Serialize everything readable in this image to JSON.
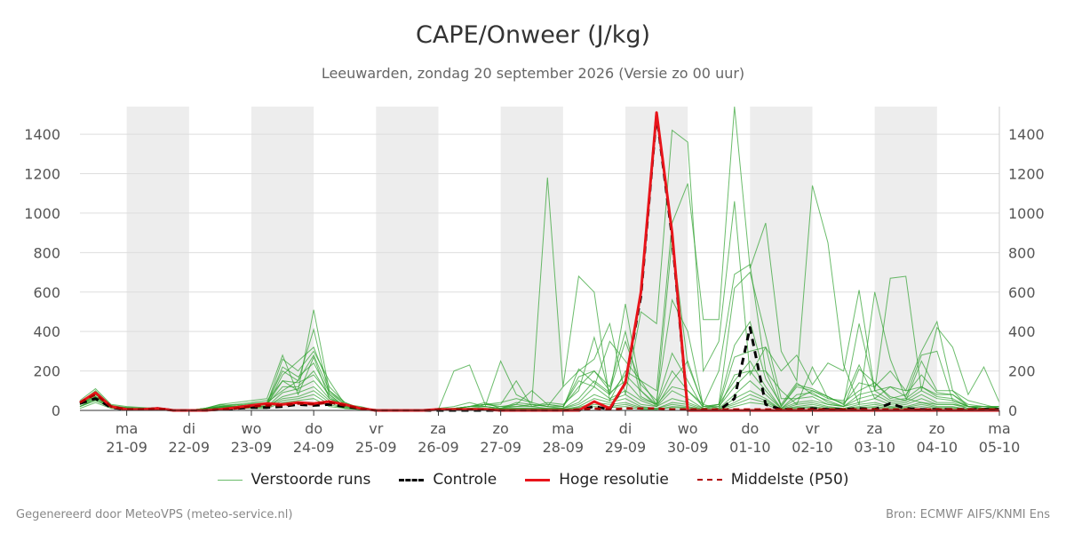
{
  "title": "CAPE/Onweer (J/kg)",
  "subtitle": "Leeuwarden, zondag 20 september 2026 (Versie zo 00 uur)",
  "footer_left": "Gegenereerd door MeteoVPS (meteo-service.nl)",
  "footer_right": "Bron: ECMWF AIFS/KNMI Ens",
  "legend": {
    "perturbed": "Verstoorde runs",
    "control": "Controle",
    "hres": "Hoge resolutie",
    "p50": "Middelste (P50)"
  },
  "colors": {
    "perturbed": "#2ca02c",
    "control": "#000000",
    "hres": "#e8141a",
    "p50": "#b00000",
    "band": "#ededed",
    "grid": "#dddddd"
  },
  "chart_data": {
    "type": "line",
    "ylim": [
      0,
      1540
    ],
    "yticks": [
      0,
      200,
      400,
      600,
      800,
      1000,
      1200,
      1400
    ],
    "xlim": [
      -0.75,
      14
    ],
    "xticks": [
      {
        "x": 0,
        "day": "ma",
        "date": "21-09"
      },
      {
        "x": 1,
        "day": "di",
        "date": "22-09"
      },
      {
        "x": 2,
        "day": "wo",
        "date": "23-09"
      },
      {
        "x": 3,
        "day": "do",
        "date": "24-09"
      },
      {
        "x": 4,
        "day": "vr",
        "date": "25-09"
      },
      {
        "x": 5,
        "day": "za",
        "date": "26-09"
      },
      {
        "x": 6,
        "day": "zo",
        "date": "27-09"
      },
      {
        "x": 7,
        "day": "ma",
        "date": "28-09"
      },
      {
        "x": 8,
        "day": "di",
        "date": "29-09"
      },
      {
        "x": 9,
        "day": "wo",
        "date": "30-09"
      },
      {
        "x": 10,
        "day": "do",
        "date": "01-10"
      },
      {
        "x": 11,
        "day": "vr",
        "date": "02-10"
      },
      {
        "x": 12,
        "day": "za",
        "date": "03-10"
      },
      {
        "x": 13,
        "day": "zo",
        "date": "04-10"
      },
      {
        "x": 14,
        "day": "ma",
        "date": "05-10"
      }
    ],
    "shaded_days": [
      0,
      2,
      4,
      6,
      8,
      10,
      12
    ],
    "grid": true,
    "legend_position": "bottom",
    "x": [
      -0.75,
      -0.5,
      -0.25,
      0,
      0.25,
      0.5,
      0.75,
      1,
      1.25,
      1.5,
      1.75,
      2,
      2.25,
      2.5,
      2.75,
      3,
      3.25,
      3.5,
      3.75,
      4,
      4.25,
      4.5,
      4.75,
      5,
      5.25,
      5.5,
      5.75,
      6,
      6.25,
      6.5,
      6.75,
      7,
      7.25,
      7.5,
      7.75,
      8,
      8.25,
      8.5,
      8.75,
      9,
      9.25,
      9.5,
      9.75,
      10,
      10.25,
      10.5,
      10.75,
      11,
      11.25,
      11.5,
      11.75,
      12,
      12.25,
      12.5,
      12.75,
      13,
      13.25,
      13.5,
      13.75,
      14
    ],
    "series": [
      {
        "name": "Hoge resolutie",
        "kind": "hres",
        "values": [
          40,
          90,
          20,
          5,
          5,
          10,
          0,
          0,
          0,
          5,
          15,
          25,
          35,
          30,
          40,
          35,
          45,
          30,
          10,
          0,
          0,
          0,
          0,
          5,
          5,
          5,
          5,
          0,
          0,
          0,
          0,
          0,
          0,
          45,
          10,
          140,
          600,
          1510,
          900,
          0,
          0,
          0,
          0,
          0,
          0,
          0,
          0,
          0,
          0,
          0,
          0,
          0,
          0,
          0,
          0,
          0,
          0,
          0,
          0,
          0
        ]
      },
      {
        "name": "Controle",
        "kind": "control",
        "values": [
          35,
          60,
          15,
          5,
          5,
          10,
          0,
          0,
          0,
          5,
          10,
          15,
          15,
          20,
          30,
          25,
          30,
          20,
          10,
          0,
          0,
          0,
          0,
          0,
          0,
          0,
          0,
          0,
          0,
          0,
          0,
          0,
          0,
          20,
          5,
          140,
          580,
          1500,
          880,
          0,
          0,
          0,
          60,
          420,
          30,
          5,
          5,
          10,
          5,
          5,
          10,
          5,
          35,
          10,
          5,
          5,
          5,
          5,
          5,
          5
        ]
      },
      {
        "name": "Middelste (P50)",
        "kind": "p50",
        "values": [
          40,
          80,
          20,
          5,
          5,
          10,
          0,
          0,
          0,
          5,
          10,
          20,
          25,
          25,
          35,
          30,
          40,
          25,
          10,
          0,
          0,
          0,
          0,
          5,
          5,
          5,
          5,
          0,
          0,
          0,
          0,
          0,
          5,
          10,
          5,
          10,
          10,
          10,
          5,
          5,
          5,
          5,
          5,
          5,
          5,
          5,
          5,
          5,
          5,
          5,
          5,
          5,
          5,
          5,
          5,
          5,
          5,
          5,
          5,
          5
        ]
      },
      {
        "kind": "perturbed",
        "values": [
          50,
          110,
          30,
          20,
          15,
          10,
          0,
          0,
          10,
          30,
          40,
          50,
          60,
          280,
          80,
          270,
          60,
          30,
          20,
          0,
          0,
          0,
          0,
          0,
          5,
          20,
          30,
          40,
          60,
          40,
          1180,
          120,
          680,
          600,
          50,
          200,
          150,
          100,
          950,
          1150,
          460,
          460,
          1540,
          720,
          950,
          300,
          150,
          1140,
          850,
          230,
          30,
          600,
          260,
          60,
          40,
          30,
          30,
          20,
          10,
          20
        ]
      },
      {
        "kind": "perturbed",
        "values": [
          30,
          70,
          20,
          10,
          5,
          5,
          0,
          0,
          5,
          20,
          30,
          40,
          50,
          150,
          100,
          510,
          100,
          40,
          10,
          0,
          0,
          0,
          0,
          10,
          20,
          40,
          20,
          250,
          80,
          40,
          20,
          120,
          200,
          260,
          440,
          80,
          500,
          440,
          1420,
          1360,
          200,
          350,
          1060,
          180,
          320,
          200,
          280,
          130,
          240,
          200,
          610,
          100,
          670,
          680,
          100,
          420,
          320,
          80,
          220,
          40
        ]
      },
      {
        "kind": "perturbed",
        "values": [
          40,
          90,
          25,
          15,
          10,
          5,
          0,
          0,
          5,
          15,
          25,
          35,
          40,
          200,
          150,
          410,
          80,
          20,
          10,
          0,
          0,
          0,
          0,
          5,
          200,
          230,
          30,
          30,
          150,
          20,
          40,
          30,
          100,
          370,
          80,
          540,
          100,
          30,
          870,
          230,
          30,
          200,
          690,
          740,
          200,
          100,
          30,
          220,
          60,
          50,
          230,
          60,
          120,
          100,
          300,
          450,
          100,
          50,
          30,
          10
        ]
      },
      {
        "kind": "perturbed",
        "values": [
          30,
          80,
          20,
          15,
          10,
          5,
          0,
          0,
          10,
          20,
          20,
          30,
          30,
          260,
          200,
          300,
          150,
          30,
          10,
          0,
          0,
          0,
          0,
          5,
          10,
          20,
          30,
          20,
          30,
          100,
          30,
          20,
          170,
          200,
          100,
          350,
          130,
          50,
          560,
          400,
          20,
          30,
          620,
          700,
          380,
          60,
          60,
          100,
          70,
          30,
          440,
          100,
          120,
          70,
          280,
          300,
          50,
          20,
          20,
          20
        ]
      },
      {
        "kind": "perturbed",
        "values": [
          30,
          70,
          20,
          15,
          10,
          5,
          0,
          0,
          10,
          20,
          20,
          30,
          25,
          180,
          250,
          320,
          120,
          40,
          10,
          0,
          0,
          0,
          0,
          5,
          10,
          20,
          40,
          10,
          30,
          20,
          30,
          20,
          150,
          120,
          350,
          250,
          150,
          30,
          290,
          150,
          10,
          30,
          330,
          450,
          160,
          30,
          140,
          80,
          50,
          20,
          210,
          140,
          70,
          50,
          250,
          100,
          100,
          20,
          20,
          20
        ]
      },
      {
        "kind": "perturbed",
        "values": [
          20,
          60,
          20,
          10,
          10,
          5,
          0,
          0,
          10,
          25,
          30,
          20,
          40,
          100,
          150,
          280,
          100,
          30,
          10,
          0,
          0,
          0,
          0,
          5,
          10,
          20,
          30,
          20,
          20,
          30,
          20,
          10,
          210,
          140,
          80,
          180,
          100,
          20,
          150,
          250,
          20,
          20,
          270,
          300,
          320,
          20,
          130,
          110,
          70,
          30,
          140,
          120,
          200,
          100,
          120,
          80,
          80,
          30,
          20,
          10
        ]
      },
      {
        "kind": "perturbed",
        "values": [
          40,
          100,
          25,
          10,
          5,
          5,
          0,
          0,
          10,
          30,
          20,
          30,
          30,
          220,
          170,
          240,
          90,
          30,
          10,
          0,
          0,
          0,
          0,
          5,
          10,
          20,
          20,
          10,
          40,
          30,
          20,
          20,
          120,
          200,
          120,
          400,
          70,
          30,
          200,
          100,
          30,
          10,
          180,
          200,
          200,
          20,
          120,
          100,
          60,
          40,
          100,
          140,
          60,
          80,
          180,
          90,
          80,
          20,
          10,
          20
        ]
      },
      {
        "kind": "perturbed",
        "values": [
          30,
          80,
          20,
          10,
          5,
          5,
          0,
          0,
          5,
          20,
          20,
          20,
          30,
          150,
          140,
          180,
          80,
          20,
          10,
          0,
          0,
          0,
          0,
          5,
          10,
          20,
          20,
          10,
          20,
          20,
          10,
          10,
          60,
          150,
          90,
          150,
          60,
          30,
          120,
          100,
          20,
          30,
          150,
          250,
          120,
          10,
          80,
          90,
          40,
          20,
          80,
          100,
          50,
          60,
          120,
          70,
          60,
          20,
          10,
          10
        ]
      },
      {
        "kind": "perturbed",
        "values": [
          20,
          60,
          15,
          10,
          5,
          5,
          0,
          0,
          5,
          15,
          20,
          25,
          30,
          120,
          120,
          200,
          70,
          20,
          10,
          0,
          0,
          0,
          0,
          5,
          10,
          10,
          20,
          10,
          10,
          10,
          10,
          10,
          40,
          120,
          60,
          100,
          50,
          20,
          100,
          60,
          10,
          20,
          120,
          200,
          100,
          10,
          60,
          70,
          30,
          20,
          60,
          80,
          40,
          50,
          100,
          60,
          50,
          20,
          10,
          10
        ]
      },
      {
        "kind": "perturbed",
        "values": [
          30,
          70,
          20,
          10,
          5,
          5,
          0,
          0,
          5,
          20,
          20,
          25,
          20,
          90,
          110,
          150,
          60,
          20,
          10,
          0,
          0,
          0,
          0,
          5,
          5,
          10,
          10,
          10,
          10,
          10,
          10,
          10,
          30,
          80,
          50,
          80,
          30,
          20,
          60,
          40,
          10,
          10,
          80,
          150,
          80,
          10,
          40,
          50,
          30,
          20,
          40,
          60,
          30,
          40,
          80,
          40,
          40,
          10,
          10,
          10
        ]
      },
      {
        "kind": "perturbed",
        "values": [
          20,
          50,
          15,
          10,
          5,
          5,
          0,
          0,
          5,
          10,
          15,
          20,
          20,
          70,
          90,
          120,
          50,
          15,
          5,
          0,
          0,
          0,
          0,
          0,
          5,
          5,
          10,
          5,
          10,
          10,
          5,
          5,
          20,
          60,
          40,
          60,
          20,
          10,
          40,
          30,
          5,
          5,
          60,
          100,
          60,
          5,
          30,
          40,
          20,
          10,
          30,
          40,
          20,
          30,
          60,
          30,
          30,
          10,
          10,
          5
        ]
      },
      {
        "kind": "perturbed",
        "values": [
          30,
          60,
          20,
          10,
          5,
          5,
          0,
          0,
          5,
          15,
          20,
          20,
          20,
          60,
          70,
          100,
          40,
          10,
          5,
          0,
          0,
          0,
          0,
          0,
          5,
          5,
          5,
          5,
          5,
          5,
          5,
          5,
          15,
          40,
          30,
          40,
          15,
          10,
          30,
          20,
          5,
          5,
          40,
          80,
          50,
          5,
          20,
          30,
          15,
          10,
          20,
          30,
          15,
          20,
          40,
          20,
          20,
          5,
          5,
          5
        ]
      },
      {
        "kind": "perturbed",
        "values": [
          20,
          50,
          15,
          5,
          5,
          5,
          0,
          0,
          5,
          10,
          10,
          15,
          15,
          50,
          60,
          80,
          30,
          10,
          5,
          0,
          0,
          0,
          0,
          0,
          0,
          5,
          5,
          5,
          5,
          5,
          5,
          5,
          10,
          30,
          20,
          30,
          10,
          5,
          20,
          15,
          5,
          5,
          30,
          60,
          40,
          5,
          15,
          20,
          10,
          5,
          15,
          20,
          10,
          15,
          30,
          15,
          15,
          5,
          5,
          5
        ]
      },
      {
        "kind": "perturbed",
        "values": [
          10,
          40,
          10,
          5,
          5,
          0,
          0,
          0,
          5,
          10,
          10,
          10,
          10,
          40,
          50,
          60,
          20,
          10,
          5,
          0,
          0,
          0,
          0,
          0,
          0,
          0,
          5,
          0,
          5,
          5,
          0,
          0,
          5,
          20,
          15,
          20,
          5,
          5,
          15,
          10,
          0,
          0,
          20,
          40,
          30,
          0,
          10,
          15,
          5,
          5,
          10,
          15,
          5,
          10,
          20,
          10,
          10,
          5,
          5,
          5
        ]
      }
    ]
  }
}
